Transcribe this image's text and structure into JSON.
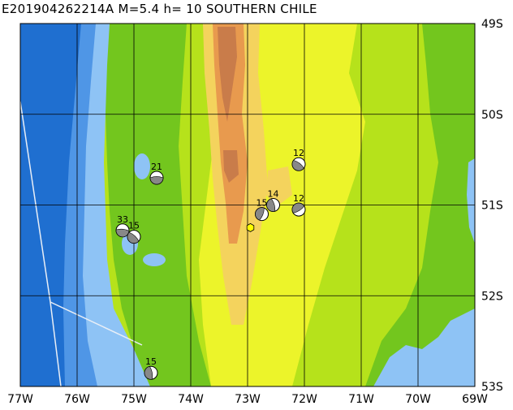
{
  "title": "E201904262214A  M=5.4  h= 10 SOUTHERN CHILE",
  "map": {
    "lon_range": [
      -77,
      -69
    ],
    "lat_range": [
      -53,
      -49
    ],
    "lon_labels": [
      "77W",
      "76W",
      "75W",
      "74W",
      "73W",
      "72W",
      "71W",
      "70W",
      "69W"
    ],
    "lat_labels": [
      "49S",
      "50S",
      "51S",
      "52S",
      "53S"
    ],
    "colors": {
      "ocean_deep": "#1f6fd0",
      "ocean_mid": "#4f96e6",
      "ocean_shallow": "#8ec3f5",
      "lowland": "#73c61e",
      "plain": "#b6e21b",
      "upland": "#ecf42a",
      "high": "#f4d35d",
      "mountain": "#e89a4e",
      "peak": "#c97c4a",
      "epicenter": "#ffff00"
    }
  },
  "events": [
    {
      "label": "21",
      "lon": -74.6,
      "lat": -50.7
    },
    {
      "label": "12",
      "lon": -72.1,
      "lat": -50.55
    },
    {
      "label": "14",
      "lon": -72.55,
      "lat": -51.0
    },
    {
      "label": "15",
      "lon": -72.75,
      "lat": -51.1
    },
    {
      "label": "12",
      "lon": -72.1,
      "lat": -51.05
    },
    {
      "label": "33",
      "lon": -75.2,
      "lat": -51.28
    },
    {
      "label": "15",
      "lon": -75.0,
      "lat": -51.35
    },
    {
      "label": "15",
      "lon": -74.7,
      "lat": -52.85
    }
  ],
  "epicenter": {
    "lon": -72.95,
    "lat": -51.25
  }
}
